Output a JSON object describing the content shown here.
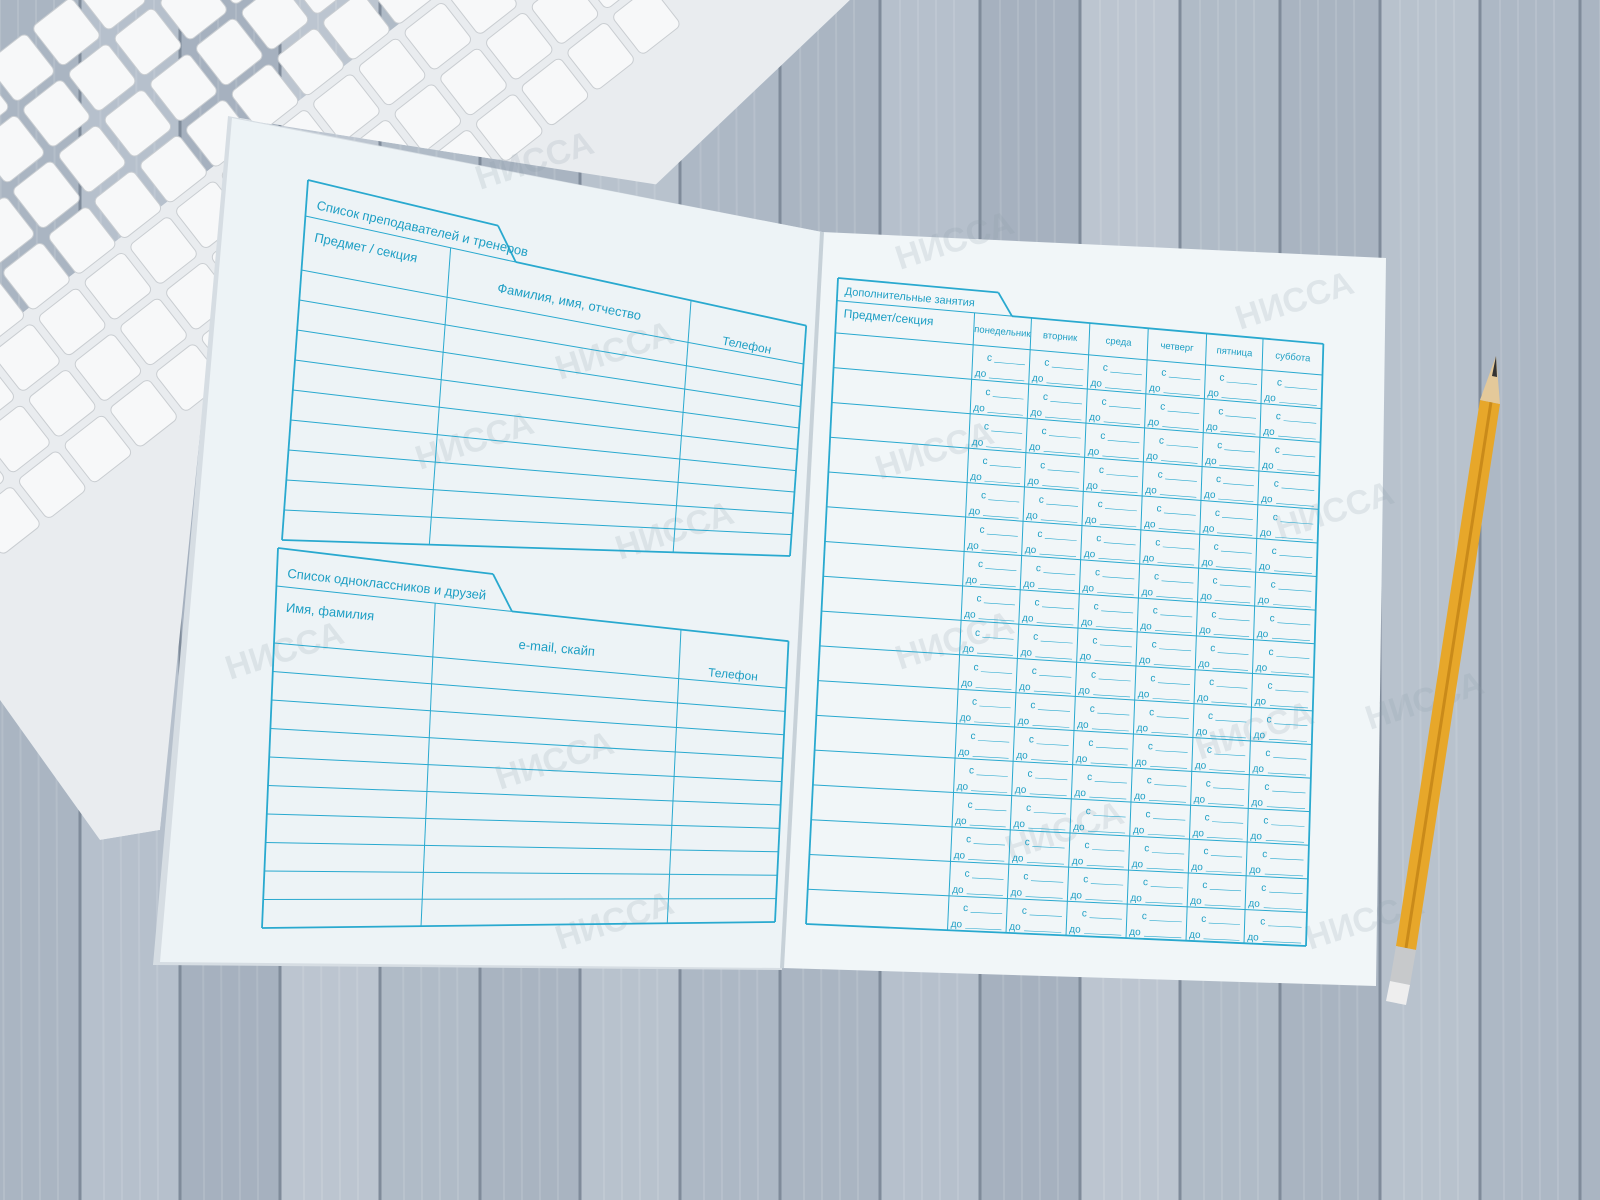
{
  "colors": {
    "ink": "#29a9cf",
    "page": "#eef4f7",
    "wood": "#aeb9c6",
    "pencil": "#e7a72a"
  },
  "watermark": "НИССА",
  "left_page": {
    "teachers": {
      "title": "Список преподавателей и тренеров",
      "columns": [
        "Предмет / секция",
        "Фамилия, имя, отчество",
        "Телефон"
      ]
    },
    "classmates": {
      "title": "Список одноклассников и друзей",
      "columns": [
        "Имя, фамилия",
        "e-mail, скайп",
        "Телефон"
      ]
    }
  },
  "right_page": {
    "title": "Дополнительные занятия",
    "subject_header": "Предмет/секция",
    "days": [
      "понедельник",
      "вторник",
      "среда",
      "четверг",
      "пятница",
      "суббота"
    ],
    "from_label": "с",
    "to_label": "до"
  }
}
